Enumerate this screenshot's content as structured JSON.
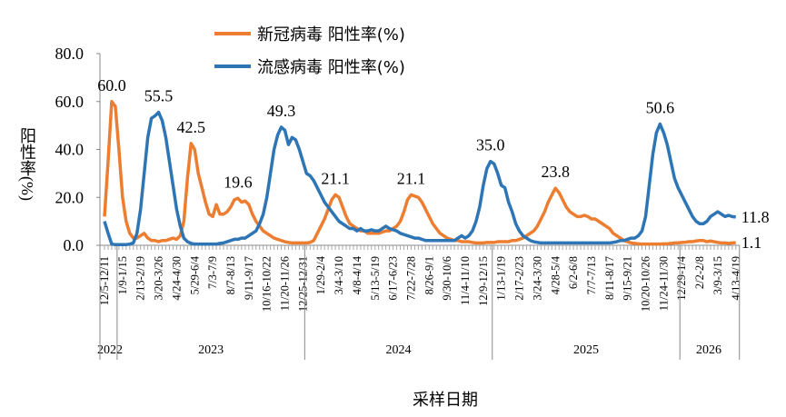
{
  "chart_data": {
    "type": "line",
    "ylabel": "阳性率(%)",
    "xlabel": "采样日期",
    "ylim": [
      0,
      80
    ],
    "yticks": [
      {
        "value": 0,
        "label": "0.0"
      },
      {
        "value": 20,
        "label": "20.0"
      },
      {
        "value": 40,
        "label": "40.0"
      },
      {
        "value": 60,
        "label": "60.0"
      },
      {
        "value": 80,
        "label": "80.0"
      }
    ],
    "categories": [
      "12/5-12/11",
      null,
      null,
      null,
      null,
      "1/9-1/15",
      null,
      null,
      null,
      null,
      "2/13-2/19",
      null,
      null,
      null,
      null,
      "3/20-3/26",
      null,
      null,
      null,
      null,
      "4/24-4/30",
      null,
      null,
      null,
      null,
      "5/29-6/4",
      null,
      null,
      null,
      null,
      "7/3-7/9",
      null,
      null,
      null,
      null,
      "8/7-8/13",
      null,
      null,
      null,
      null,
      "9/11-9/17",
      null,
      null,
      null,
      null,
      "10/16-10/22",
      null,
      null,
      null,
      null,
      "11/20-11/26",
      null,
      null,
      null,
      null,
      "12/25-12/31",
      null,
      null,
      null,
      null,
      "1/29-2/4",
      null,
      null,
      null,
      null,
      "3/4-3/10",
      null,
      null,
      null,
      null,
      "4/8-4/14",
      null,
      null,
      null,
      null,
      "5/13-5/19",
      null,
      null,
      null,
      null,
      "6/17-6/23",
      null,
      null,
      null,
      null,
      "7/22-7/28",
      null,
      null,
      null,
      null,
      "8/26-9/1",
      null,
      null,
      null,
      null,
      "9/30-10/6",
      null,
      null,
      null,
      null,
      "11/4-11/10",
      null,
      null,
      null,
      null,
      "12/9-12/15",
      null,
      null,
      null,
      null,
      "1/13-1/19",
      null,
      null,
      null,
      null,
      "2/17-2/23",
      null,
      null,
      null,
      null,
      "3/24-3/30",
      null,
      null,
      null,
      null,
      "4/28-5/4",
      null,
      null,
      null,
      null,
      "6/2-6/8",
      null,
      null,
      null,
      null,
      "7/7-7/13",
      null,
      null,
      null,
      null,
      "8/11-8/17",
      null,
      null,
      null,
      null,
      "9/15-9/21",
      null,
      null,
      null,
      null,
      "10/20-10/26",
      null,
      null,
      null,
      null,
      "11/24-11/30",
      null,
      null,
      null,
      null,
      "12/29-1/4",
      null,
      null,
      null,
      null,
      "2/2-2/8",
      null,
      null,
      null,
      null,
      "3/9-3/15",
      null,
      null,
      null,
      null,
      "4/13-4/19"
    ],
    "year_groups": [
      {
        "label": "2022",
        "from": 0,
        "to": 3
      },
      {
        "label": "2023",
        "from": 4,
        "to": 55
      },
      {
        "label": "2024",
        "from": 56,
        "to": 107
      },
      {
        "label": "2025",
        "from": 108,
        "to": 159
      },
      {
        "label": "2026",
        "from": 160,
        "to": 175
      }
    ],
    "series": [
      {
        "name": "新冠病毒 阳性率(%)",
        "color": "#ed7d31",
        "values": [
          12,
          35,
          60,
          58,
          40,
          20,
          10,
          5,
          3,
          3,
          4,
          5,
          3,
          2,
          2,
          1.5,
          2,
          2,
          2.5,
          3,
          2.5,
          4,
          10,
          28,
          42.5,
          40,
          30,
          24,
          18,
          13,
          12,
          17,
          13,
          13,
          14,
          16,
          19,
          19.6,
          18,
          18.5,
          17,
          13,
          10,
          8,
          6,
          5,
          4,
          3,
          2.5,
          2,
          1.5,
          1.2,
          1,
          1,
          1,
          1,
          1,
          1.2,
          2,
          5,
          8,
          11,
          15,
          19,
          21.1,
          20,
          16,
          12,
          9,
          8,
          7,
          6,
          6,
          5,
          5,
          5,
          5,
          5.5,
          6,
          6,
          7,
          8,
          10,
          14,
          19,
          21.1,
          20.5,
          20,
          18,
          15,
          12,
          9,
          7,
          5,
          4,
          3,
          2.5,
          2,
          2,
          1.5,
          1.5,
          1.5,
          1.2,
          1,
          1,
          1,
          1.2,
          1.2,
          1.2,
          1.5,
          1.5,
          1.5,
          1.5,
          2,
          2,
          2.5,
          3,
          4,
          5,
          6,
          8,
          11,
          14,
          18,
          21,
          23.8,
          22,
          19,
          16,
          14,
          13,
          12,
          12,
          12.5,
          12,
          11,
          11,
          10,
          9,
          8,
          7,
          5,
          4,
          3,
          2,
          1.5,
          1,
          0.8,
          0.6,
          0.5,
          0.5,
          0.5,
          0.5,
          0.5,
          0.5,
          0.6,
          0.6,
          0.8,
          1,
          1,
          1.2,
          1.3,
          1.5,
          1.5,
          1.8,
          2,
          2,
          1.5,
          1.8,
          1.5,
          1.2,
          1,
          1,
          0.8,
          1,
          1.1
        ],
        "value_labels": [
          null,
          null,
          "60.0",
          null,
          null,
          null,
          null,
          null,
          null,
          null,
          null,
          null,
          null,
          null,
          null,
          null,
          null,
          null,
          null,
          null,
          null,
          null,
          null,
          null,
          "42.5",
          null,
          null,
          null,
          null,
          null,
          null,
          null,
          null,
          null,
          null,
          null,
          null,
          "19.6",
          null,
          null,
          null,
          null,
          null,
          null,
          null,
          null,
          null,
          null,
          null,
          null,
          null,
          null,
          null,
          null,
          null,
          null,
          null,
          null,
          null,
          null,
          null,
          null,
          null,
          null,
          "21.1",
          null,
          null,
          null,
          null,
          null,
          null,
          null,
          null,
          null,
          null,
          null,
          null,
          null,
          null,
          null,
          null,
          null,
          null,
          null,
          null,
          "21.1",
          null,
          null,
          null,
          null,
          null,
          null,
          null,
          null,
          null,
          null,
          null,
          null,
          null,
          null,
          null,
          null,
          null,
          null,
          null,
          null,
          null,
          null,
          null,
          null,
          null,
          null,
          null,
          null,
          null,
          null,
          null,
          null,
          null,
          null,
          null,
          null,
          null,
          null,
          null,
          "23.8",
          null,
          null,
          null,
          null,
          null,
          null,
          null,
          null,
          null,
          null,
          null,
          null,
          null,
          null,
          null,
          null,
          null,
          null,
          null,
          null,
          null,
          null,
          null,
          null,
          null,
          null,
          null,
          null,
          null,
          null,
          null,
          null,
          null,
          null,
          null,
          null,
          null,
          null,
          null,
          null,
          null,
          null,
          null,
          null,
          null,
          null,
          null,
          null,
          null,
          "1.1"
        ]
      },
      {
        "name": "流感病毒 阳性率(%)",
        "color": "#2e75b6",
        "values": [
          10,
          5,
          0.5,
          0.3,
          0.3,
          0.3,
          0.3,
          0.5,
          1,
          5,
          15,
          30,
          45,
          53,
          54,
          55.5,
          52,
          45,
          35,
          25,
          15,
          8,
          3,
          1.5,
          0.8,
          0.5,
          0.5,
          0.5,
          0.5,
          0.5,
          0.5,
          0.5,
          0.8,
          1,
          1.5,
          2,
          2.5,
          2.5,
          3,
          3,
          4,
          5,
          6,
          9,
          13,
          20,
          30,
          40,
          46,
          49.3,
          48,
          42,
          45,
          44,
          40,
          35,
          30,
          29,
          27,
          24,
          21,
          18,
          16,
          14,
          12,
          10,
          9,
          8,
          7,
          7,
          6,
          7,
          6,
          6,
          6.5,
          6,
          6,
          7,
          8,
          7,
          6.5,
          6,
          5,
          4.5,
          4,
          3.5,
          3,
          3,
          2.5,
          2,
          2,
          2,
          2,
          2,
          2,
          2,
          2,
          2,
          3,
          4,
          3,
          4,
          6,
          10,
          16,
          25,
          32,
          35,
          34,
          30,
          25,
          24,
          18,
          14,
          9,
          6,
          4,
          3,
          2,
          1.5,
          1.2,
          1,
          1,
          1,
          1,
          1,
          1,
          1,
          1,
          1,
          1,
          1,
          1,
          1,
          1,
          1,
          1,
          1,
          1,
          1,
          1,
          1.2,
          1.5,
          2,
          2,
          2.5,
          3,
          3,
          4,
          6,
          12,
          25,
          38,
          47,
          50.6,
          47,
          42,
          35,
          28,
          24,
          21,
          18,
          15,
          12,
          10,
          9,
          9,
          10,
          12,
          13,
          14,
          13,
          12,
          12.5,
          12,
          11.8
        ],
        "value_labels": [
          null,
          null,
          null,
          null,
          null,
          null,
          null,
          null,
          null,
          null,
          null,
          null,
          null,
          null,
          null,
          "55.5",
          null,
          null,
          null,
          null,
          null,
          null,
          null,
          null,
          null,
          null,
          null,
          null,
          null,
          null,
          null,
          null,
          null,
          null,
          null,
          null,
          null,
          null,
          null,
          null,
          null,
          null,
          null,
          null,
          null,
          null,
          null,
          null,
          null,
          "49.3",
          null,
          null,
          null,
          null,
          null,
          null,
          null,
          null,
          null,
          null,
          null,
          null,
          null,
          null,
          null,
          null,
          null,
          null,
          null,
          null,
          null,
          null,
          null,
          null,
          null,
          null,
          null,
          null,
          null,
          null,
          null,
          null,
          null,
          null,
          null,
          null,
          null,
          null,
          null,
          null,
          null,
          null,
          null,
          null,
          null,
          null,
          null,
          null,
          null,
          null,
          null,
          null,
          null,
          null,
          null,
          null,
          null,
          "35.0",
          null,
          null,
          null,
          null,
          null,
          null,
          null,
          null,
          null,
          null,
          null,
          null,
          null,
          null,
          null,
          null,
          null,
          null,
          null,
          null,
          null,
          null,
          null,
          null,
          null,
          null,
          null,
          null,
          null,
          null,
          null,
          null,
          null,
          null,
          null,
          null,
          null,
          null,
          null,
          null,
          null,
          null,
          null,
          null,
          null,
          null,
          "50.6",
          null,
          null,
          null,
          null,
          null,
          null,
          null,
          null,
          null,
          null,
          null,
          null,
          null,
          null,
          null,
          null,
          null,
          null,
          null,
          null,
          "11.8"
        ]
      }
    ]
  }
}
